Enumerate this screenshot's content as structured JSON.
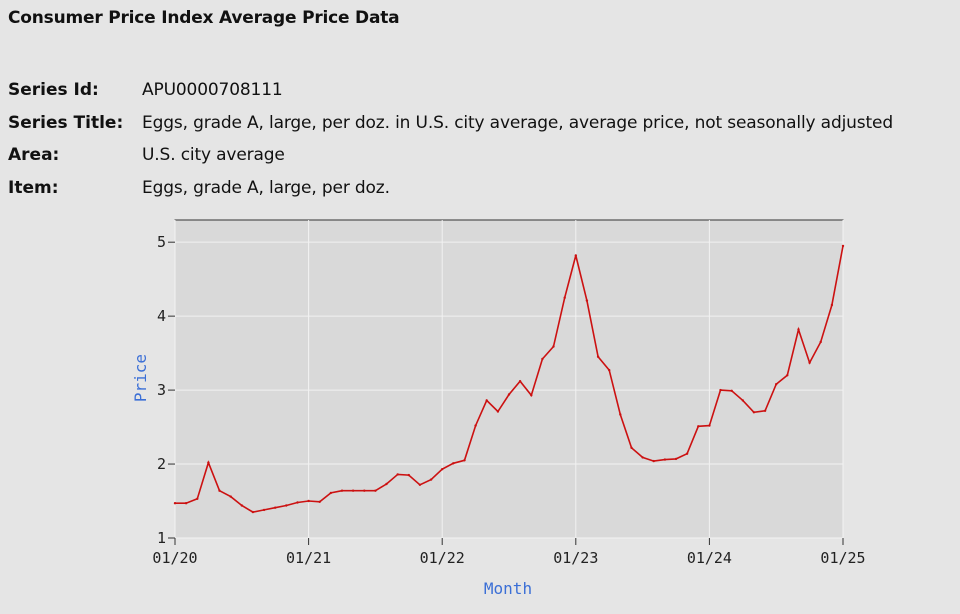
{
  "header": {
    "title": "Consumer Price Index Average Price Data"
  },
  "series_info": [
    {
      "label": "Series Id:",
      "value": "APU0000708111"
    },
    {
      "label": "Series Title:",
      "value": "Eggs, grade A, large, per doz. in U.S. city average, average price, not seasonally adjusted"
    },
    {
      "label": "Area:",
      "value": "U.S. city average"
    },
    {
      "label": "Item:",
      "value": "Eggs, grade A, large, per doz."
    }
  ],
  "colors": {
    "line": "#cc1111",
    "axis_title": "#3b6fd6",
    "plot_bg": "#d9d9d9",
    "grid": "#f2f2f2"
  },
  "chart_data": {
    "type": "line",
    "title": "",
    "xlabel": "Month",
    "ylabel": "Price",
    "x_ticks": [
      "01/20",
      "01/21",
      "01/22",
      "01/23",
      "01/24",
      "01/25"
    ],
    "y_ticks": [
      "1",
      "2",
      "3",
      "4",
      "5"
    ],
    "ylim": [
      1,
      5.3
    ],
    "xlim": [
      "2020-01",
      "2025-01"
    ],
    "grid": true,
    "series": [
      {
        "x": [
          "2020-01",
          "2020-02",
          "2020-03",
          "2020-04",
          "2020-05",
          "2020-06",
          "2020-07",
          "2020-08",
          "2020-09",
          "2020-10",
          "2020-11",
          "2020-12",
          "2021-01",
          "2021-02",
          "2021-03",
          "2021-04",
          "2021-05",
          "2021-06",
          "2021-07",
          "2021-08",
          "2021-09",
          "2021-10",
          "2021-11",
          "2021-12",
          "2022-01",
          "2022-02",
          "2022-03",
          "2022-04",
          "2022-05",
          "2022-06",
          "2022-07",
          "2022-08",
          "2022-09",
          "2022-10",
          "2022-11",
          "2022-12",
          "2023-01",
          "2023-02",
          "2023-03",
          "2023-04",
          "2023-05",
          "2023-06",
          "2023-07",
          "2023-08",
          "2023-09",
          "2023-10",
          "2023-11",
          "2023-12",
          "2024-01",
          "2024-02",
          "2024-03",
          "2024-04",
          "2024-05",
          "2024-06",
          "2024-07",
          "2024-08",
          "2024-09",
          "2024-10",
          "2024-11",
          "2024-12",
          "2025-01"
        ],
        "values": [
          1.47,
          1.47,
          1.53,
          2.02,
          1.64,
          1.56,
          1.44,
          1.35,
          1.38,
          1.41,
          1.44,
          1.48,
          1.5,
          1.49,
          1.61,
          1.64,
          1.64,
          1.64,
          1.64,
          1.73,
          1.86,
          1.85,
          1.72,
          1.79,
          1.93,
          2.01,
          2.05,
          2.52,
          2.86,
          2.71,
          2.94,
          3.12,
          2.93,
          3.42,
          3.59,
          4.25,
          4.82,
          4.21,
          3.45,
          3.27,
          2.67,
          2.22,
          2.09,
          2.04,
          2.06,
          2.07,
          2.14,
          2.51,
          2.52,
          3.0,
          2.99,
          2.86,
          2.7,
          2.72,
          3.08,
          3.2,
          3.82,
          3.37,
          3.65,
          4.15,
          4.95
        ]
      }
    ]
  }
}
